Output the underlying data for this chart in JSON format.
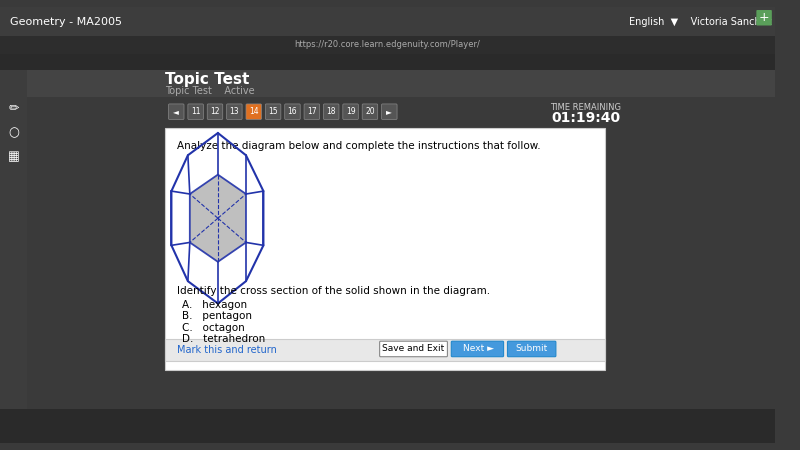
{
  "bg_outer": "#3a3a3a",
  "bg_card": "#ffffff",
  "bg_header": "#4a4a4a",
  "title_text": "Topic Test",
  "subtitle_text": "Topic Test    Active",
  "time_label": "TIME REMAINING",
  "time_value": "01:19:40",
  "page_numbers": [
    "◄",
    "11",
    "12",
    "13",
    "14",
    "15",
    "16",
    "17",
    "18",
    "19",
    "20",
    "►"
  ],
  "active_page": "14",
  "instruction": "Analyze the diagram below and complete the instructions that follow.",
  "question": "Identify the cross section of the solid shown in the diagram.",
  "choices": [
    "A.   hexagon",
    "B.   pentagon",
    "C.   octagon",
    "D.   tetrahedron"
  ],
  "btn_save": "Save and Exit",
  "btn_next": "Next",
  "btn_submit": "Submit",
  "link_text": "Mark this and return",
  "shape_color": "#2233aa",
  "fill_color": "#aaaaaa",
  "card_bg": "#f0f0f0"
}
